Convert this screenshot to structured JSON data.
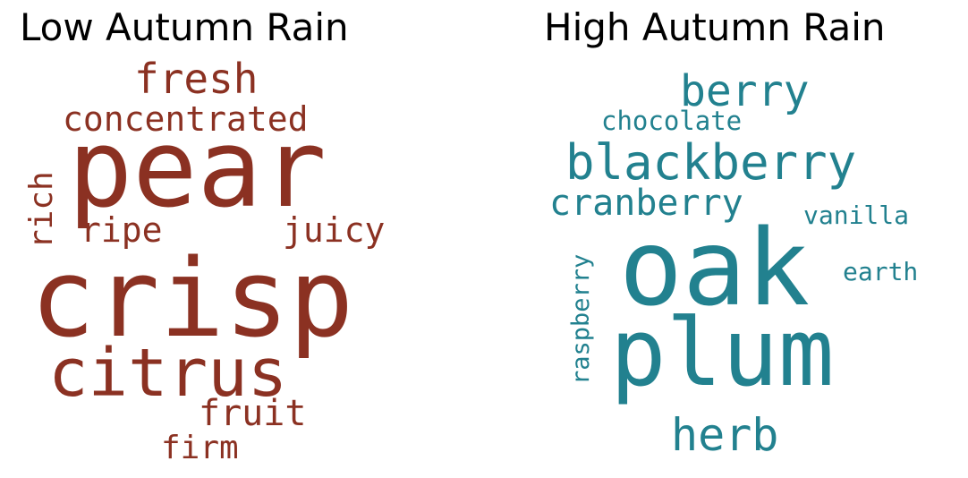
{
  "chart_data": [
    {
      "type": "wordcloud",
      "title": "Low Autumn Rain",
      "color": "#8b3122",
      "words": [
        {
          "text": "pear",
          "weight": 100
        },
        {
          "text": "crisp",
          "weight": 100
        },
        {
          "text": "citrus",
          "weight": 62
        },
        {
          "text": "fresh",
          "weight": 38
        },
        {
          "text": "concentrated",
          "weight": 31
        },
        {
          "text": "ripe",
          "weight": 32
        },
        {
          "text": "juicy",
          "weight": 32
        },
        {
          "text": "rich",
          "weight": 30
        },
        {
          "text": "fruit",
          "weight": 33
        },
        {
          "text": "firm",
          "weight": 30
        }
      ]
    },
    {
      "type": "wordcloud",
      "title": "High Autumn Rain",
      "color": "#22818f",
      "words": [
        {
          "text": "oak",
          "weight": 100
        },
        {
          "text": "plum",
          "weight": 88
        },
        {
          "text": "blackberry",
          "weight": 45
        },
        {
          "text": "berry",
          "weight": 40
        },
        {
          "text": "cranberry",
          "weight": 34
        },
        {
          "text": "herb",
          "weight": 42
        },
        {
          "text": "chocolate",
          "weight": 24
        },
        {
          "text": "vanilla",
          "weight": 23
        },
        {
          "text": "earth",
          "weight": 23
        },
        {
          "text": "raspberry",
          "weight": 22
        }
      ]
    }
  ]
}
